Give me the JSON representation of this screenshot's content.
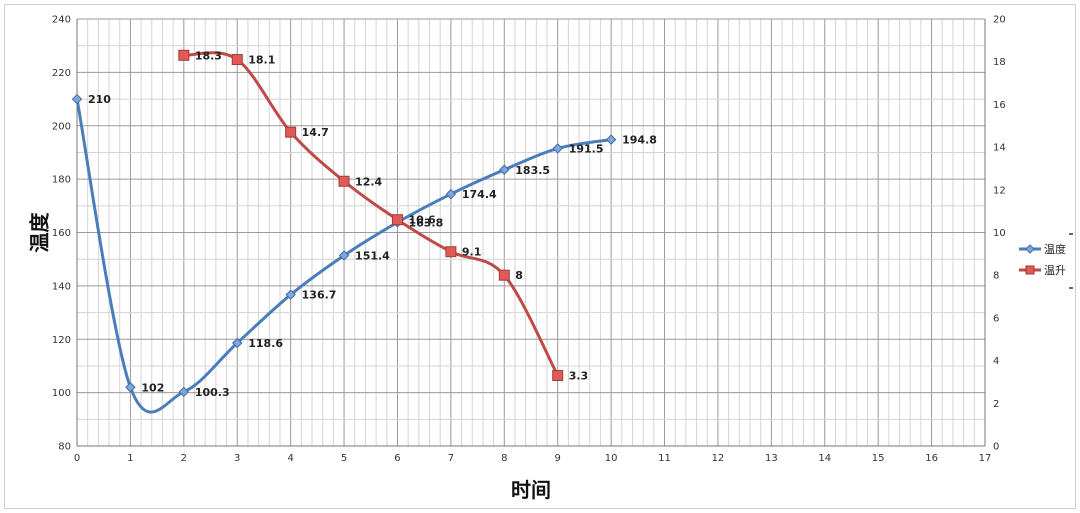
{
  "chart_data": {
    "type": "line",
    "xlabel": "时间",
    "ylabel": "温度",
    "xlim": [
      0,
      17
    ],
    "ylim": [
      80,
      240
    ],
    "y2lim": [
      0,
      20
    ],
    "xticks": [
      "0",
      "1",
      "2",
      "3",
      "4",
      "5",
      "6",
      "7",
      "8",
      "9",
      "10",
      "11",
      "12",
      "13",
      "14",
      "15",
      "16",
      "17"
    ],
    "yticks": [
      "80",
      "100",
      "120",
      "140",
      "160",
      "180",
      "200",
      "220",
      "240"
    ],
    "y2ticks": [
      "0",
      "2",
      "4",
      "6",
      "8",
      "10",
      "12",
      "14",
      "16",
      "18",
      "20"
    ],
    "grid": true,
    "legend": "right",
    "series": [
      {
        "name": "温度",
        "axis": "left",
        "color": "#4a7ebb",
        "marker": "diamond",
        "x": [
          0,
          1,
          2,
          3,
          4,
          5,
          6,
          7,
          8,
          9,
          10
        ],
        "y": [
          210,
          102,
          100.3,
          118.6,
          136.7,
          151.4,
          163.8,
          174.4,
          183.5,
          191.5,
          194.8
        ],
        "labels": [
          "210",
          "102",
          "100.3",
          "118.6",
          "136.7",
          "151.4",
          "163.8",
          "174.4",
          "183.5",
          "191.5",
          "194.8"
        ]
      },
      {
        "name": "温升",
        "axis": "right",
        "color": "#be4b48",
        "marker": "square",
        "x": [
          2,
          3,
          4,
          5,
          6,
          7,
          8,
          9
        ],
        "y": [
          18.3,
          18.1,
          14.7,
          12.4,
          10.6,
          9.1,
          8,
          3.3
        ],
        "labels": [
          "18.3",
          "18.1",
          "14.7",
          "12.4",
          "10.6",
          "9.1",
          "8",
          "3.3"
        ]
      }
    ]
  }
}
